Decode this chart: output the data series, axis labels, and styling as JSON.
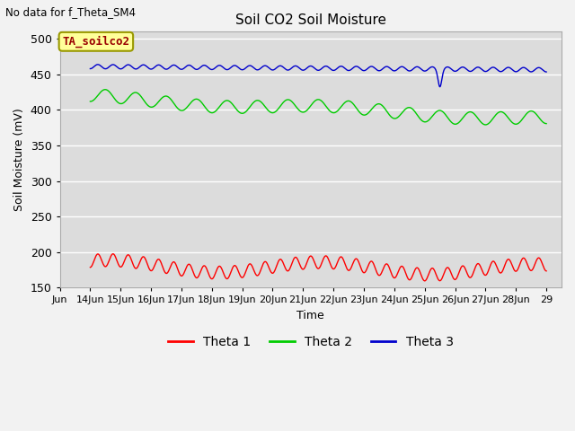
{
  "title": "Soil CO2 Soil Moisture",
  "ylabel": "Soil Moisture (mV)",
  "xlabel": "Time",
  "topleft_text": "No data for f_Theta_SM4",
  "legend_label": "TA_soilco2",
  "ylim": [
    150,
    510
  ],
  "yticks": [
    150,
    200,
    250,
    300,
    350,
    400,
    450,
    500
  ],
  "xtick_labels": [
    "Jun",
    "14Jun",
    "15Jun",
    "16Jun",
    "17Jun",
    "18Jun",
    "19Jun",
    "20Jun",
    "21Jun",
    "22Jun",
    "23Jun",
    "24Jun",
    "25Jun",
    "26Jun",
    "27Jun",
    "28Jun",
    "29"
  ],
  "bg_color": "#dcdcdc",
  "line_colors": {
    "theta1": "#ff0000",
    "theta2": "#00cc00",
    "theta3": "#0000cc"
  },
  "legend_entries": [
    "Theta 1",
    "Theta 2",
    "Theta 3"
  ],
  "theta1_base": 172,
  "theta1_amp": 18,
  "theta2_base": 408,
  "theta2_amp": 18,
  "theta3_base": 458,
  "theta3_amp": 6
}
